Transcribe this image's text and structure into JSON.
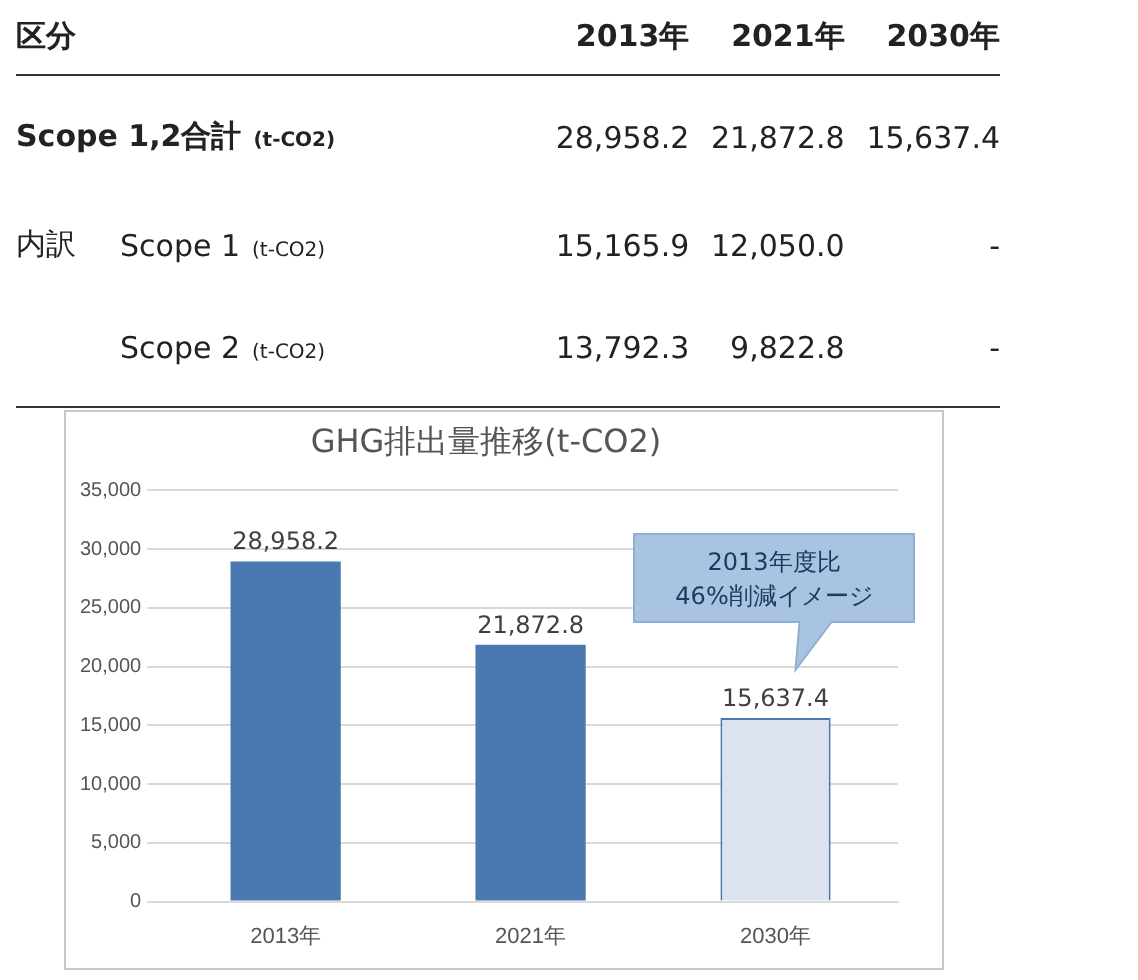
{
  "chart_data": [
    {
      "type": "other",
      "title": "区分",
      "categories": [
        "2013年",
        "2021年",
        "2030年"
      ],
      "y_categories": [
        "Scope 1,2合計",
        "Scope 1",
        "Scope 2"
      ],
      "ylabel": "(t-CO2)",
      "annotations": [
        "内訳"
      ],
      "cell_labels": [
        [
          "28,958.2",
          "21,872.8",
          "15,637.4"
        ],
        [
          "15,165.9",
          "12,050.0",
          "-"
        ],
        [
          "13,792.3",
          "9,822.8",
          "-"
        ]
      ]
    },
    {
      "type": "bar",
      "title": "GHG排出量推移(t-CO2)",
      "categories": [
        "2013年",
        "2021年",
        "2030年"
      ],
      "values": [
        28958.2,
        21872.8,
        15637.4
      ],
      "value_labels": [
        "28,958.2",
        "21,872.8",
        "15,637.4"
      ],
      "colors": [
        "#4a78b0",
        "#4a78b0",
        "#dce3ef"
      ],
      "ylim": [
        0,
        35000
      ],
      "yticks": [
        0,
        {
          "value": 5000,
          "label": "5,000"
        },
        {
          "value": 10000,
          "label": "10,000"
        },
        {
          "value": 15000,
          "label": "15,000"
        },
        {
          "value": 20000,
          "label": "20,000"
        },
        {
          "value": 25000,
          "label": "25,000"
        },
        {
          "value": 30000,
          "label": "30,000"
        },
        {
          "value": 35000,
          "label": "35,000"
        }
      ],
      "grid": "y",
      "annotations": [
        "2013年度比\n46%削減イメージ"
      ]
    }
  ]
}
